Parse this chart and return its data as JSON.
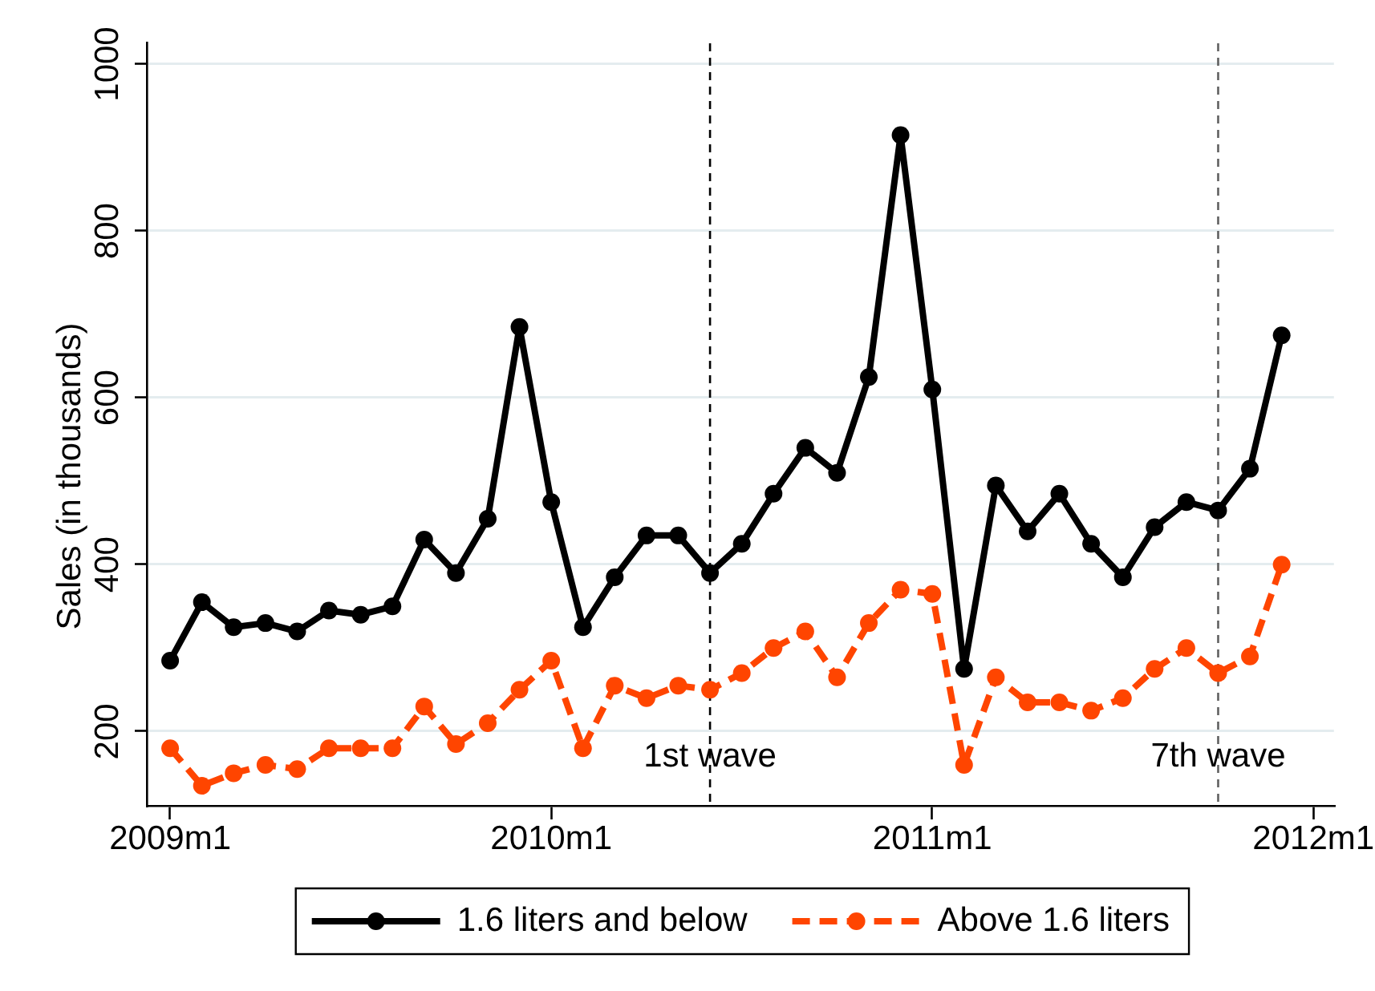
{
  "chart_data": {
    "type": "line",
    "ylabel": "Sales (in thousands)",
    "x": [
      "2009-01",
      "2009-02",
      "2009-03",
      "2009-04",
      "2009-05",
      "2009-06",
      "2009-07",
      "2009-08",
      "2009-09",
      "2009-10",
      "2009-11",
      "2009-12",
      "2010-01",
      "2010-02",
      "2010-03",
      "2010-04",
      "2010-05",
      "2010-06",
      "2010-07",
      "2010-08",
      "2010-09",
      "2010-10",
      "2010-11",
      "2010-12",
      "2011-01",
      "2011-02",
      "2011-03",
      "2011-04",
      "2011-05",
      "2011-06",
      "2011-07",
      "2011-08",
      "2011-09",
      "2011-10",
      "2011-11",
      "2011-12"
    ],
    "series": [
      {
        "name": "1.6 liters and below",
        "color": "#000000",
        "line_style": "solid",
        "values": [
          285,
          355,
          325,
          330,
          320,
          345,
          340,
          350,
          430,
          390,
          455,
          685,
          475,
          325,
          385,
          435,
          435,
          390,
          425,
          485,
          540,
          510,
          625,
          915,
          610,
          275,
          495,
          440,
          485,
          425,
          385,
          445,
          475,
          465,
          515,
          675
        ]
      },
      {
        "name": "Above 1.6 liters",
        "color": "#ff4500",
        "line_style": "dashed",
        "values": [
          180,
          135,
          150,
          160,
          155,
          180,
          180,
          180,
          230,
          185,
          210,
          250,
          285,
          180,
          255,
          240,
          255,
          250,
          270,
          300,
          320,
          265,
          330,
          370,
          365,
          160,
          265,
          235,
          235,
          225,
          240,
          275,
          300,
          270,
          290,
          400
        ]
      }
    ],
    "xlim": [
      "2008-12-10",
      "2012-01-21"
    ],
    "xticks": [
      {
        "value": "2009-01",
        "label": "2009m1"
      },
      {
        "value": "2010-01",
        "label": "2010m1"
      },
      {
        "value": "2011-01",
        "label": "2011m1"
      },
      {
        "value": "2012-01",
        "label": "2012m1"
      }
    ],
    "ylim": [
      110,
      1025
    ],
    "yticks": [
      200,
      400,
      600,
      800,
      1000
    ],
    "ref_lines": [
      {
        "axis": "x",
        "value": "2010-06",
        "label": "1st wave",
        "color": "#000000",
        "line_style": "dashed"
      },
      {
        "axis": "x",
        "value": "2011-10",
        "label": "7th wave",
        "color": "#606060",
        "line_style": "dashed"
      }
    ],
    "grid": "y",
    "legend": "bottom",
    "marker": "circle"
  }
}
